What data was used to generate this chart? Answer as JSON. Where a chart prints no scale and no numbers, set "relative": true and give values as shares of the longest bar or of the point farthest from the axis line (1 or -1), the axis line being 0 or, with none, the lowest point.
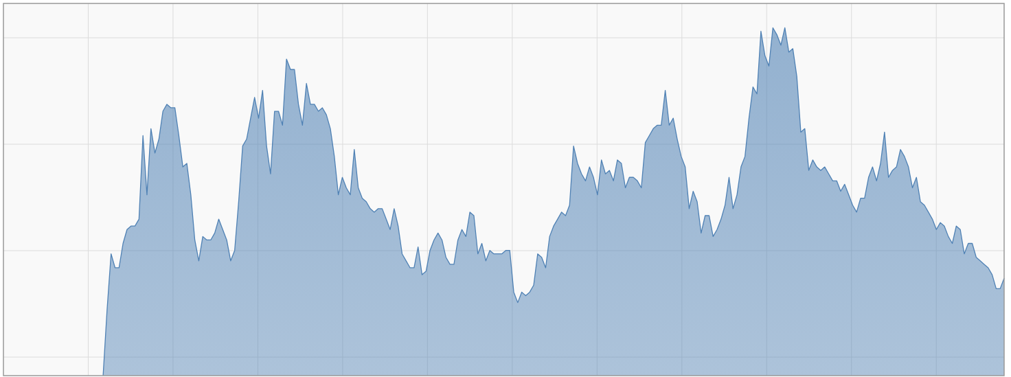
{
  "chart_data": {
    "type": "area",
    "relative": true,
    "grid": true,
    "categories": [
      null,
      null,
      null,
      null,
      null,
      null,
      null,
      null,
      null,
      null,
      null,
      null,
      null,
      null,
      null,
      null,
      null,
      null,
      null,
      null,
      null,
      null,
      null,
      null,
      null,
      null,
      null,
      null,
      null,
      null,
      null,
      null,
      null,
      null,
      null,
      null,
      null,
      null,
      null,
      null,
      null,
      null,
      null,
      null,
      null,
      null,
      null,
      null,
      null,
      null,
      null,
      null,
      null,
      null,
      null,
      null,
      null,
      null,
      null,
      null,
      null,
      null,
      null,
      null,
      null,
      null,
      null,
      null,
      null,
      null,
      null,
      null,
      null,
      null,
      null,
      null,
      null,
      null,
      null,
      null,
      null,
      null,
      null,
      null,
      null,
      null,
      null,
      null,
      null,
      null,
      null,
      null,
      null,
      null,
      null,
      null,
      null,
      null,
      null,
      null,
      null,
      null,
      null,
      null,
      null,
      null,
      null,
      null,
      null,
      null,
      null,
      null,
      null,
      null,
      null,
      null,
      null,
      null,
      null,
      null,
      null,
      null,
      null,
      null,
      null,
      null,
      null,
      null,
      null,
      null,
      null,
      null,
      null,
      null,
      null,
      null,
      null,
      null,
      null,
      null,
      null,
      null,
      null,
      null,
      null,
      null,
      null,
      null,
      null,
      null,
      null,
      null,
      null,
      null,
      null,
      null,
      null,
      null,
      null,
      null,
      null,
      null,
      null,
      null,
      null,
      null,
      null,
      null,
      null,
      null,
      null,
      null,
      null,
      null,
      null,
      null,
      null,
      null,
      null,
      null,
      null,
      null,
      null,
      null,
      null,
      null,
      null,
      null,
      null,
      null,
      null,
      null,
      null,
      null,
      null,
      null,
      null,
      null,
      null,
      null,
      null,
      null,
      null,
      null,
      null,
      null,
      null,
      null,
      null,
      null,
      null,
      null,
      null,
      null,
      null,
      null,
      null,
      null,
      null,
      null,
      null,
      null,
      null,
      null,
      null,
      null,
      null,
      null,
      null,
      null,
      null,
      null,
      null,
      null,
      null,
      null,
      null,
      null,
      null,
      null,
      null,
      null,
      null,
      null,
      null,
      null,
      null,
      null,
      null,
      null,
      null,
      null
    ],
    "series": [
      {
        "color": "#4f81b4",
        "values": [
          null,
          null,
          null,
          null,
          null,
          null,
          null,
          null,
          null,
          null,
          null,
          null,
          null,
          null,
          null,
          null,
          null,
          null,
          null,
          null,
          null,
          null,
          null,
          null,
          null,
          0,
          0.19,
          0.35,
          0.31,
          0.31,
          0.38,
          0.42,
          0.43,
          0.43,
          0.45,
          0.69,
          0.52,
          0.71,
          0.64,
          0.68,
          0.76,
          0.78,
          0.77,
          0.77,
          0.69,
          0.6,
          0.61,
          0.52,
          0.39,
          0.33,
          0.4,
          0.39,
          0.39,
          0.41,
          0.45,
          0.42,
          0.39,
          0.33,
          0.36,
          0.5,
          0.66,
          0.68,
          0.74,
          0.8,
          0.74,
          0.82,
          0.66,
          0.58,
          0.76,
          0.76,
          0.72,
          0.91,
          0.88,
          0.88,
          0.78,
          0.72,
          0.84,
          0.78,
          0.78,
          0.76,
          0.77,
          0.75,
          0.71,
          0.63,
          0.52,
          0.57,
          0.54,
          0.52,
          0.65,
          0.54,
          0.51,
          0.5,
          0.48,
          0.47,
          0.48,
          0.48,
          0.45,
          0.42,
          0.48,
          0.43,
          0.35,
          0.33,
          0.31,
          0.31,
          0.37,
          0.29,
          0.3,
          0.36,
          0.39,
          0.41,
          0.39,
          0.34,
          0.32,
          0.32,
          0.39,
          0.42,
          0.4,
          0.47,
          0.46,
          0.35,
          0.38,
          0.33,
          0.36,
          0.35,
          0.35,
          0.35,
          0.36,
          0.36,
          0.24,
          0.21,
          0.24,
          0.23,
          0.24,
          0.26,
          0.35,
          0.34,
          0.31,
          0.4,
          0.43,
          0.45,
          0.47,
          0.46,
          0.49,
          0.66,
          0.61,
          0.58,
          0.56,
          0.6,
          0.57,
          0.52,
          0.62,
          0.58,
          0.59,
          0.56,
          0.62,
          0.61,
          0.54,
          0.57,
          0.57,
          0.56,
          0.54,
          0.67,
          0.69,
          0.71,
          0.72,
          0.72,
          0.82,
          0.72,
          0.74,
          0.68,
          0.63,
          0.6,
          0.48,
          0.53,
          0.5,
          0.41,
          0.46,
          0.46,
          0.4,
          0.42,
          0.45,
          0.49,
          0.57,
          0.48,
          0.52,
          0.6,
          0.63,
          0.74,
          0.83,
          0.81,
          0.99,
          0.92,
          0.89,
          1,
          0.98,
          0.95,
          1,
          0.93,
          0.94,
          0.86,
          0.7,
          0.71,
          0.59,
          0.62,
          0.6,
          0.59,
          0.6,
          0.58,
          0.56,
          0.56,
          0.53,
          0.55,
          0.52,
          0.49,
          0.47,
          0.51,
          0.51,
          0.57,
          0.6,
          0.56,
          0.61,
          0.7,
          0.57,
          0.59,
          0.6,
          0.65,
          0.63,
          0.6,
          0.54,
          0.57,
          0.5,
          0.49,
          0.47,
          0.45,
          0.42,
          0.44,
          0.43,
          0.4,
          0.38,
          0.43,
          0.42,
          0.35,
          0.38,
          0.38,
          0.34,
          0.33,
          0.32,
          0.31,
          0.29,
          0.25,
          0.25,
          0.28
        ]
      }
    ]
  }
}
